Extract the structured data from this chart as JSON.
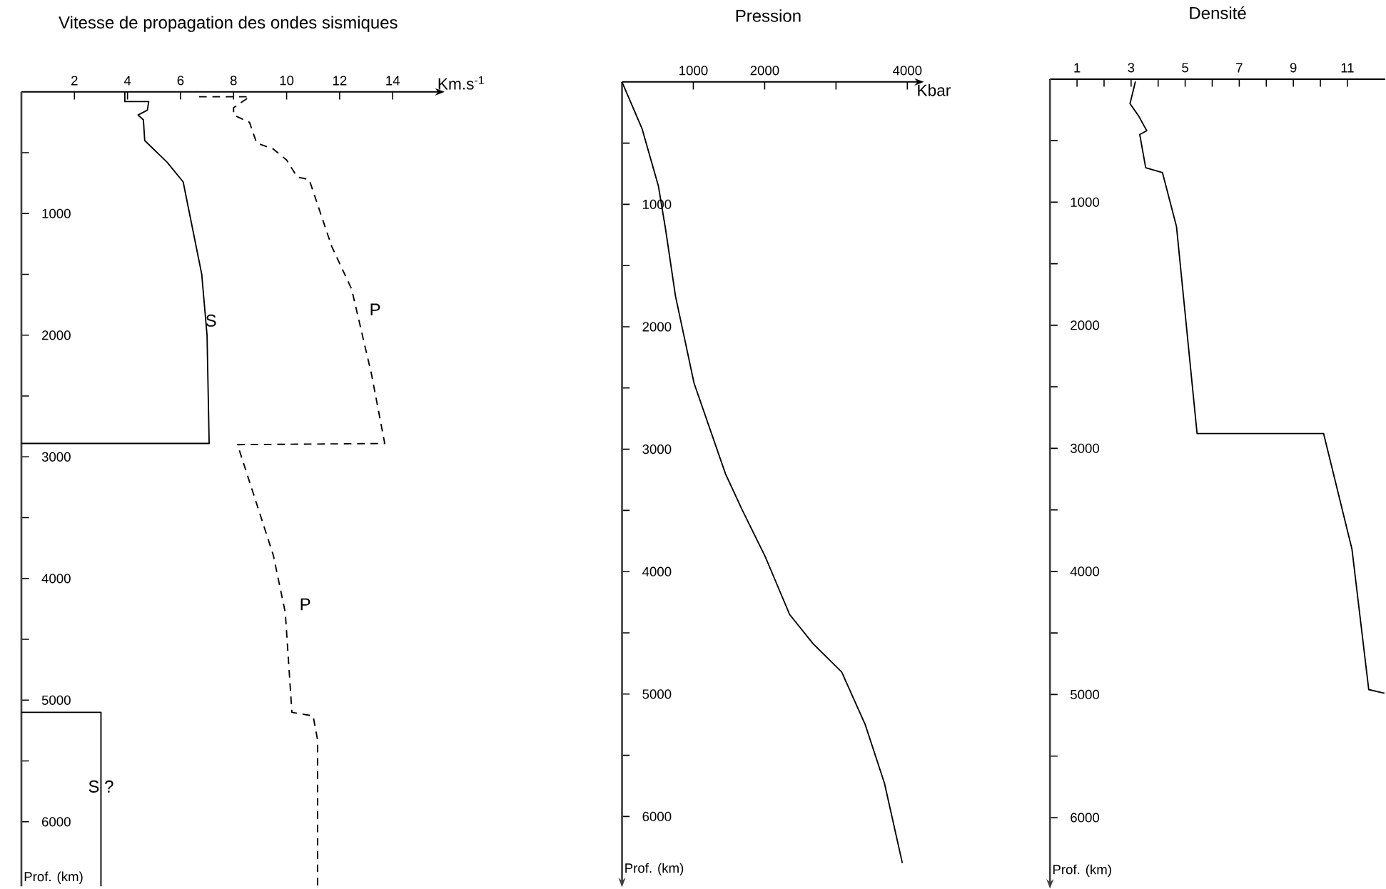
{
  "chart_data": [
    {
      "type": "line",
      "title": "Vitesse de propagation des ondes sismiques",
      "xlabel": "Km.s$^{-1}$",
      "ylabel": "Prof. (km)",
      "marker": "none",
      "xlim": [
        0,
        15.6
      ],
      "xticks": [
        2,
        4,
        6,
        8,
        10,
        12,
        14
      ],
      "ylim": [
        6530,
        0
      ],
      "yticks": [
        {
          "value": 500,
          "label": null
        },
        1000,
        {
          "value": 1500,
          "label": null
        },
        2000,
        {
          "value": 2500,
          "label": null
        },
        3000,
        {
          "value": 3500,
          "label": null
        },
        4000,
        {
          "value": 4500,
          "label": null
        },
        5000,
        {
          "value": 5500,
          "label": null
        },
        6000
      ],
      "series": [
        {
          "color": "#000000",
          "line_style": "solid",
          "x": [
            3.9,
            3.9,
            4.8,
            4.75,
            4.4,
            4.6,
            4.65,
            5.5,
            6.1,
            6.8,
            7.0,
            7.08,
            0
          ],
          "values": [
            0,
            80,
            80,
            150,
            190,
            230,
            400,
            580,
            740,
            1500,
            2000,
            2890,
            2890
          ]
        },
        {
          "color": "#000000",
          "line_style": "solid",
          "x": [
            0,
            3.0,
            3.0
          ],
          "values": [
            5100,
            5100,
            6530
          ]
        },
        {
          "color": "#000000",
          "line_style": "dashed",
          "x": [
            6.7,
            8.6,
            8.0,
            8.0,
            8.6,
            8.87,
            9.5,
            10.0,
            10.4,
            10.85,
            11.7,
            12.45,
            13.2,
            13.7,
            8.15,
            9.5,
            9.95,
            10.2,
            11.0,
            11.17,
            11.17
          ],
          "values": [
            40,
            40,
            130,
            190,
            250,
            420,
            470,
            560,
            700,
            720,
            1270,
            1620,
            2320,
            2890,
            2900,
            3810,
            4280,
            5100,
            5130,
            5330,
            6530
          ]
        }
      ],
      "annotations": [
        {
          "text": "S",
          "x": 7.15,
          "y": 1880
        },
        "P",
        "P",
        {
          "text": "S ?",
          "x": 3.0,
          "y": 5710
        }
      ]
    },
    {
      "type": "line",
      "title": "Pression",
      "xlabel": "Kbar",
      "ylabel": "Prof. (km)",
      "marker": "none",
      "xlim": [
        0,
        4100
      ],
      "xticks": [
        1000,
        2000,
        {
          "value": 3000,
          "label": null
        },
        4000
      ],
      "ylim": [
        6500,
        0
      ],
      "yticks": [
        {
          "value": 500,
          "label": null
        },
        1000,
        {
          "value": 1500,
          "label": null
        },
        2000,
        {
          "value": 2500,
          "label": null
        },
        3000,
        {
          "value": 3500,
          "label": null
        },
        4000,
        {
          "value": 4500,
          "label": null
        },
        5000,
        {
          "value": 5500,
          "label": null
        },
        6000
      ],
      "series": [
        {
          "color": "#000000",
          "line_style": "solid",
          "x": [
            0,
            280,
            510,
            610,
            750,
            1010,
            1450,
            1680,
            2010,
            2350,
            2680,
            3080,
            3410,
            3680,
            3930
          ],
          "values": [
            0,
            380,
            850,
            1200,
            1750,
            2460,
            3200,
            3490,
            3880,
            4350,
            4590,
            4820,
            5250,
            5730,
            6380
          ]
        }
      ]
    },
    {
      "type": "line",
      "title": "Densité",
      "ylabel": "Prof. (km)",
      "marker": "none",
      "xlim": [
        0,
        12.4
      ],
      "xticks": [
        1,
        {
          "value": 2,
          "label": null
        },
        3,
        {
          "value": 4,
          "label": null
        },
        5,
        {
          "value": 6,
          "label": null
        },
        7,
        {
          "value": 8,
          "label": null
        },
        9,
        {
          "value": 10,
          "label": null
        },
        11
      ],
      "ylim": [
        6500,
        0
      ],
      "yticks": [
        {
          "value": 500,
          "label": null
        },
        1000,
        {
          "value": 1500,
          "label": null
        },
        2000,
        {
          "value": 2500,
          "label": null
        },
        3000,
        {
          "value": 3500,
          "label": null
        },
        4000,
        {
          "value": 4500,
          "label": null
        },
        5000,
        {
          "value": 5500,
          "label": null
        },
        6000
      ],
      "series": [
        {
          "color": "#000000",
          "line_style": "solid",
          "x": [
            3.16,
            2.96,
            3.28,
            3.58,
            3.32,
            3.54,
            4.16,
            4.68,
            5.44,
            10.12,
            11.17,
            11.79,
            12.37
          ],
          "values": [
            20,
            200,
            300,
            420,
            450,
            720,
            760,
            1200,
            2880,
            2880,
            3820,
            4960,
            4990
          ]
        }
      ]
    }
  ]
}
